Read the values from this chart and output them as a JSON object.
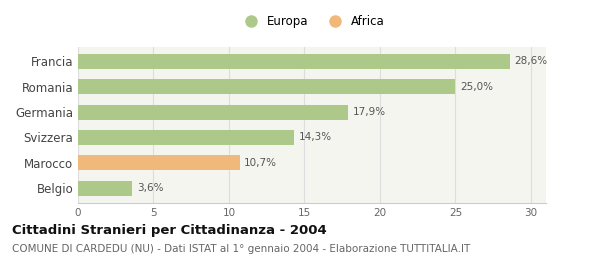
{
  "categories": [
    "Francia",
    "Romania",
    "Germania",
    "Svizzera",
    "Marocco",
    "Belgio"
  ],
  "values": [
    28.6,
    25.0,
    17.9,
    14.3,
    10.7,
    3.6
  ],
  "labels": [
    "28,6%",
    "25,0%",
    "17,9%",
    "14,3%",
    "10,7%",
    "3,6%"
  ],
  "colors": [
    "#adc98a",
    "#adc98a",
    "#adc98a",
    "#adc98a",
    "#f0b87a",
    "#adc98a"
  ],
  "legend_items": [
    {
      "label": "Europa",
      "color": "#adc98a"
    },
    {
      "label": "Africa",
      "color": "#f0b87a"
    }
  ],
  "xlim": [
    0,
    31
  ],
  "xticks": [
    0,
    5,
    10,
    15,
    20,
    25,
    30
  ],
  "title": "Cittadini Stranieri per Cittadinanza - 2004",
  "subtitle": "COMUNE DI CARDEDU (NU) - Dati ISTAT al 1° gennaio 2004 - Elaborazione TUTTITALIA.IT",
  "title_fontsize": 9.5,
  "subtitle_fontsize": 7.5,
  "background_color": "#ffffff",
  "bar_background": "#f5f5f0",
  "grid_color": "#dddddd"
}
